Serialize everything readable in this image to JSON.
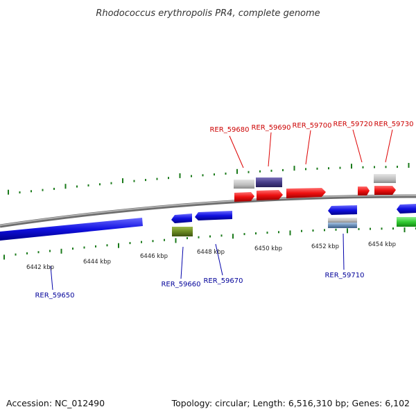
{
  "title": "Rhodococcus erythropolis PR4, complete genome",
  "footer": {
    "accession": "Accession: NC_012490",
    "summary": "Topology: circular; Length: 6,516,310 bp; Genes: 6,102"
  },
  "scale_labels": [
    "6442 kbp",
    "6444 kbp",
    "6446 kbp",
    "6448 kbp",
    "6450 kbp",
    "6452 kbp",
    "6454 kbp"
  ],
  "colors": {
    "forward_gene": "#ee1111",
    "reverse_gene": "#1111dd",
    "forward_label": "#cc0000",
    "reverse_label": "#000099",
    "tick": "#1a7a1a",
    "backbone": "#888888",
    "grey_feature": "#bbbbbb",
    "purple_feature": "#4a3f8a",
    "olive_feature": "#6b8a22",
    "steel_feature": "#6b8fb8",
    "green_feature": "#33cc33"
  },
  "genes_top": [
    {
      "id": "RER_59680"
    },
    {
      "id": "RER_59690"
    },
    {
      "id": "RER_59700"
    },
    {
      "id": "RER_59720"
    },
    {
      "id": "RER_59730"
    }
  ],
  "genes_bottom": [
    {
      "id": "RER_59650"
    },
    {
      "id": "RER_59660"
    },
    {
      "id": "RER_59670"
    },
    {
      "id": "RER_59710"
    }
  ]
}
